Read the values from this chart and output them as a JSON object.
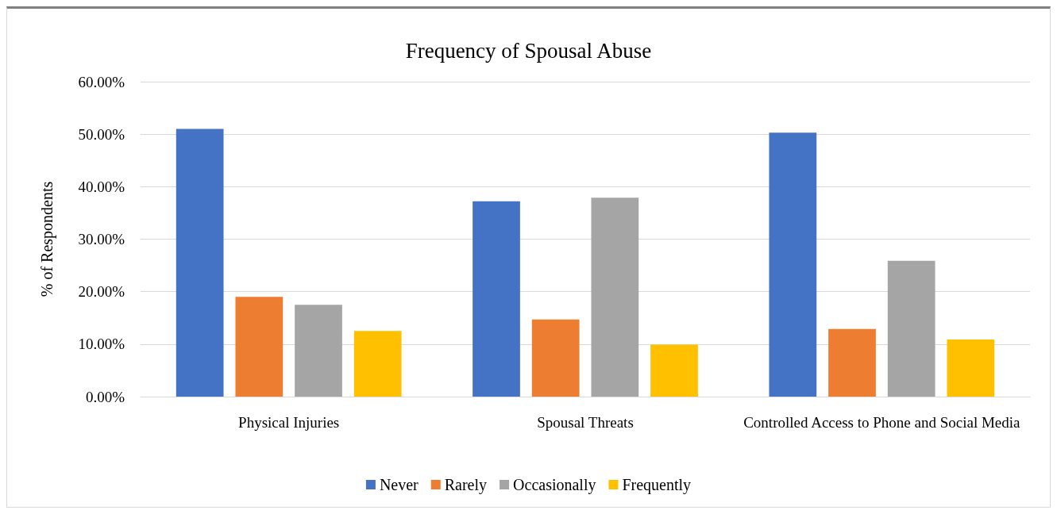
{
  "chart_data": {
    "type": "bar",
    "title": "Frequency of Spousal Abuse",
    "ylabel": "% of Respondents",
    "categories": [
      "Physical Injuries",
      "Spousal Threats",
      "Controlled Access to Phone and Social Media"
    ],
    "series": [
      {
        "name": "Never",
        "color": "#4472c4",
        "values": [
          51.0,
          37.2,
          50.3
        ]
      },
      {
        "name": "Rarely",
        "color": "#ed7d31",
        "values": [
          19.0,
          14.7,
          12.9
        ]
      },
      {
        "name": "Occasionally",
        "color": "#a5a5a5",
        "values": [
          17.5,
          37.9,
          25.9
        ]
      },
      {
        "name": "Frequently",
        "color": "#ffc000",
        "values": [
          12.5,
          9.9,
          10.9
        ]
      }
    ],
    "ylim": [
      0,
      60
    ],
    "yticks": [
      {
        "value": 0,
        "label": "0.00%"
      },
      {
        "value": 10,
        "label": "10.00%"
      },
      {
        "value": 20,
        "label": "20.00%"
      },
      {
        "value": 30,
        "label": "30.00%"
      },
      {
        "value": 40,
        "label": "40.00%"
      },
      {
        "value": 50,
        "label": "50.00%"
      },
      {
        "value": 60,
        "label": "60.00%"
      }
    ],
    "grid": "y",
    "legend": "bottom"
  }
}
